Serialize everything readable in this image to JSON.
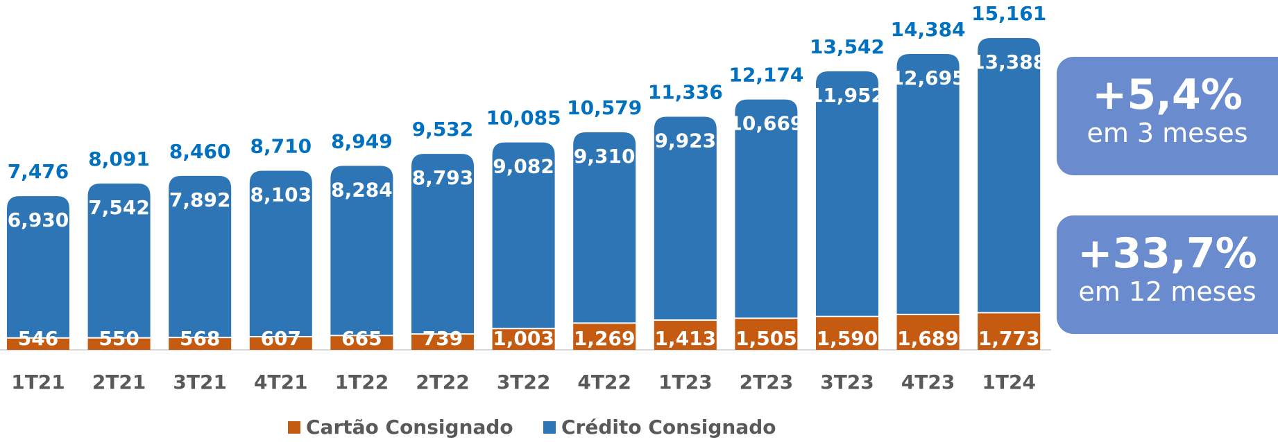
{
  "chart_data": {
    "type": "stacked_bar",
    "categories": [
      "1T21",
      "2T21",
      "3T21",
      "4T21",
      "1T22",
      "2T22",
      "3T22",
      "4T22",
      "1T23",
      "2T23",
      "3T23",
      "4T23",
      "1T24"
    ],
    "series": [
      {
        "name": "Cartão Consignado",
        "color": "#c55a11",
        "values": [
          546,
          550,
          568,
          607,
          665,
          739,
          1003,
          1269,
          1413,
          1505,
          1590,
          1689,
          1773
        ],
        "value_labels": [
          "546",
          "550",
          "568",
          "607",
          "665",
          "739",
          "1,003",
          "1,269",
          "1,413",
          "1,505",
          "1,590",
          "1,689",
          "1,773"
        ]
      },
      {
        "name": "Crédito Consignado",
        "color": "#2e75b6",
        "values": [
          6930,
          7542,
          7892,
          8103,
          8284,
          8793,
          9082,
          9310,
          9923,
          10669,
          11952,
          12695,
          13388
        ],
        "value_labels": [
          "6,930",
          "7,542",
          "7,892",
          "8,103",
          "8,284",
          "8,793",
          "9,082",
          "9,310",
          "9,923",
          "10,669",
          "11,952",
          "12,695",
          "13,388"
        ]
      }
    ],
    "totals": [
      7476,
      8091,
      8460,
      8710,
      8949,
      9532,
      10085,
      10579,
      11336,
      12174,
      13542,
      14384,
      15161
    ],
    "total_labels": [
      "7,476",
      "8,091",
      "8,460",
      "8,710",
      "8,949",
      "9,532",
      "10,085",
      "10,579",
      "11,336",
      "12,174",
      "13,542",
      "14,384",
      "15,161"
    ],
    "annotations": [
      {
        "value": "+5,4%",
        "text": "em 3 meses"
      },
      {
        "value": "+33,7%",
        "text": "em 12 meses"
      }
    ]
  }
}
